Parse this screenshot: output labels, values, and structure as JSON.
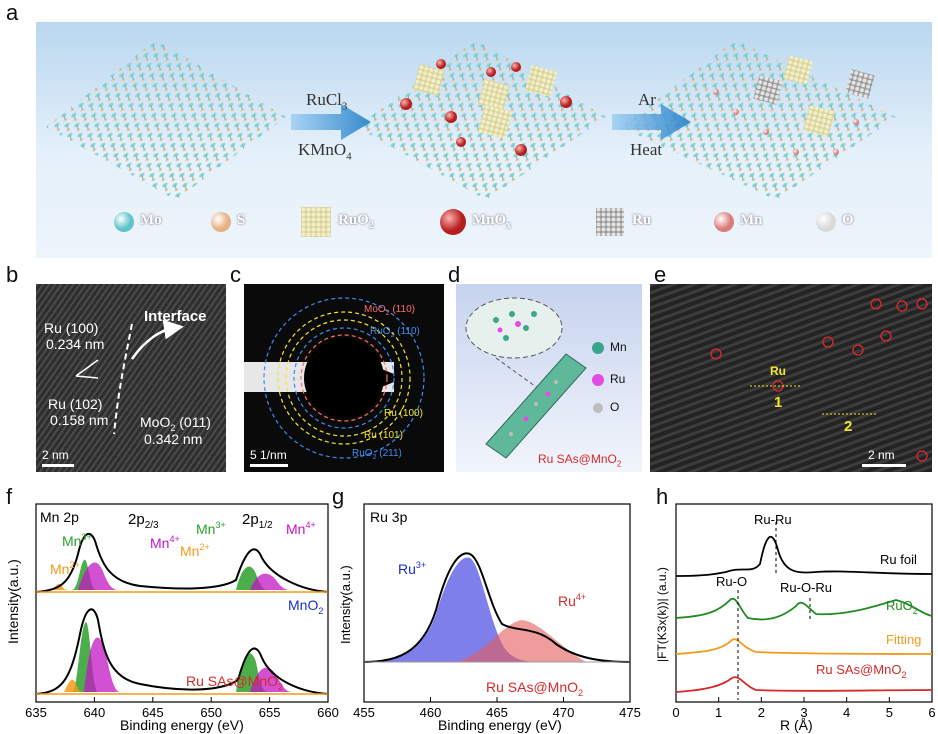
{
  "panels": {
    "a": "a",
    "b": "b",
    "c": "c",
    "d": "d",
    "e": "e",
    "f": "f",
    "g": "g",
    "h": "h"
  },
  "scheme": {
    "step1_top": "RuCl",
    "step1_top_sub": "3",
    "step1_bottom": "KMnO",
    "step1_bottom_sub": "4",
    "step2_top": "Ar",
    "step2_bottom": "Heat",
    "legend": [
      {
        "label": "Mo",
        "color": "#7fd9d9"
      },
      {
        "label": "S",
        "color": "#f2c9a0"
      },
      {
        "label": "RuO",
        "sub": "2",
        "color": "#e7e2b0"
      },
      {
        "label": "MnO",
        "sub": "x",
        "color": "#d23a3a"
      },
      {
        "label": "Ru",
        "color": "#c9c9c9"
      },
      {
        "label": "Mn",
        "color": "#e69a9a"
      },
      {
        "label": "O",
        "color": "#f5f5f5"
      }
    ]
  },
  "panel_b": {
    "interface": "Interface",
    "ru100": "Ru (100)",
    "ru100_d": "0.234 nm",
    "ru102": "Ru (102)",
    "ru102_d": "0.158 nm",
    "moo2": "MoO",
    "moo2_sub": "2",
    "moo2_plane": " (011)",
    "moo2_d": "0.342 nm",
    "scale": "2 nm"
  },
  "panel_c": {
    "rings": [
      {
        "label": "MoO",
        "sub": "2",
        "tail": " (110)",
        "color": "#ff6b6b"
      },
      {
        "label": "RuO",
        "sub": "2",
        "tail": " (110)",
        "color": "#3d8ef0"
      },
      {
        "label": "Ru (100)",
        "color": "#f5e62a"
      },
      {
        "label": "Ru (101)",
        "color": "#f5e62a"
      },
      {
        "label": "RuO",
        "sub": "2",
        "tail": " (211)",
        "color": "#3d8ef0"
      }
    ],
    "scale": "5 1/nm"
  },
  "panel_d": {
    "legend": [
      {
        "label": "Mn",
        "color": "#3aa58a"
      },
      {
        "label": "Ru",
        "color": "#e34be3"
      },
      {
        "label": "O",
        "color": "#bdbdbd"
      }
    ],
    "caption": "Ru SAs@MnO",
    "caption_sub": "2"
  },
  "panel_e": {
    "ru": "Ru",
    "line1": "1",
    "line2": "2",
    "scale": "2 nm"
  },
  "panel_f": {
    "title": "Mn 2p",
    "peak1": "2p",
    "peak1_sub": "2/3",
    "peak2": "2p",
    "peak2_sub": "1/2",
    "mn3": "Mn",
    "mn3_sup": "3+",
    "mn4": "Mn",
    "mn4_sup": "4+",
    "mn2": "Mn",
    "mn2_sup": "2+",
    "trace_top": "MnO",
    "trace_top_sub": "2",
    "trace_bottom": "Ru SAs@MnO",
    "trace_bottom_sub": "2",
    "ylabel": "Intensity(a.u.)",
    "xlabel": "Binding energy (eV)",
    "xticks": [
      "635",
      "640",
      "645",
      "650",
      "655",
      "660"
    ]
  },
  "panel_g": {
    "title": "Ru 3p",
    "ru3": "Ru",
    "ru3_sup": "3+",
    "ru4": "Ru",
    "ru4_sup": "4+",
    "sample": "Ru SAs@MnO",
    "sample_sub": "2",
    "ylabel": "Intensity(a.u.)",
    "xlabel": "Binding energy (eV)",
    "xticks": [
      "455",
      "460",
      "465",
      "470",
      "475"
    ]
  },
  "panel_h": {
    "ru_ru": "Ru-Ru",
    "ru_o": "Ru-O",
    "ru_o_ru": "Ru-O-Ru",
    "traces": [
      {
        "label": "Ru foil",
        "color": "#000000"
      },
      {
        "label": "RuO",
        "sub": "2",
        "color": "#1f8a1f"
      },
      {
        "label": "Fitting",
        "color": "#f39a1a"
      },
      {
        "label": "Ru SAs@MnO",
        "sub": "2",
        "color": "#d62a2a"
      }
    ],
    "ylabel": "|FT(K3x(k))| (a.u.)",
    "xlabel": "R (Å)",
    "xticks": [
      "0",
      "1",
      "2",
      "3",
      "4",
      "5",
      "6"
    ]
  },
  "chart_data": [
    {
      "type": "line",
      "title": "Mn 2p",
      "xlabel": "Binding energy (eV)",
      "ylabel": "Intensity(a.u.)",
      "xlim": [
        635,
        660
      ],
      "series": [
        {
          "name": "MnO2",
          "x": [
            635,
            640,
            641,
            642.3,
            644,
            646,
            650,
            652,
            654,
            655.5,
            658,
            660
          ],
          "values": [
            0.02,
            0.05,
            0.18,
            0.62,
            0.4,
            0.12,
            0.06,
            0.14,
            0.38,
            0.28,
            0.06,
            0.03
          ]
        },
        {
          "name": "Ru SAs@MnO2",
          "x": [
            635,
            640,
            641,
            642.3,
            644,
            646,
            650,
            652,
            654,
            655.5,
            658,
            660
          ],
          "values": [
            0.02,
            0.05,
            0.2,
            0.7,
            0.42,
            0.12,
            0.06,
            0.15,
            0.42,
            0.3,
            0.06,
            0.03
          ]
        }
      ]
    },
    {
      "type": "area",
      "title": "Ru 3p",
      "xlabel": "Binding energy (eV)",
      "ylabel": "Intensity(a.u.)",
      "xlim": [
        455,
        475
      ],
      "series": [
        {
          "name": "Ru3+",
          "center": 463.5,
          "height": 0.85,
          "width": 2.0
        },
        {
          "name": "Ru4+",
          "center": 467.0,
          "height": 0.25,
          "width": 2.8
        }
      ]
    },
    {
      "type": "line",
      "xlabel": "R (Å)",
      "ylabel": "|FT(K3x(k))| (a.u.)",
      "xlim": [
        0,
        6
      ],
      "series": [
        {
          "name": "Ru foil",
          "x": [
            0,
            1.5,
            2.0,
            2.4,
            2.7,
            3.5,
            4.5,
            5.5,
            6
          ],
          "values": [
            0.0,
            0.02,
            0.2,
            0.95,
            0.25,
            0.1,
            0.08,
            0.05,
            0.03
          ]
        },
        {
          "name": "RuO2",
          "x": [
            0,
            1.0,
            1.5,
            2.0,
            2.6,
            3.1,
            3.6,
            4.5,
            5.5,
            6
          ],
          "values": [
            0.0,
            0.08,
            0.55,
            0.1,
            0.12,
            0.35,
            0.1,
            0.12,
            0.15,
            0.05
          ]
        },
        {
          "name": "Fitting",
          "x": [
            0,
            1.0,
            1.5,
            2.0,
            3.0,
            4.0,
            5.0,
            6
          ],
          "values": [
            0.0,
            0.05,
            0.35,
            0.06,
            0.04,
            0.03,
            0.02,
            0.02
          ]
        },
        {
          "name": "Ru SAs@MnO2",
          "x": [
            0,
            1.0,
            1.5,
            2.0,
            3.0,
            4.0,
            5.0,
            6
          ],
          "values": [
            0.0,
            0.05,
            0.3,
            0.06,
            0.05,
            0.04,
            0.03,
            0.03
          ]
        }
      ]
    }
  ]
}
